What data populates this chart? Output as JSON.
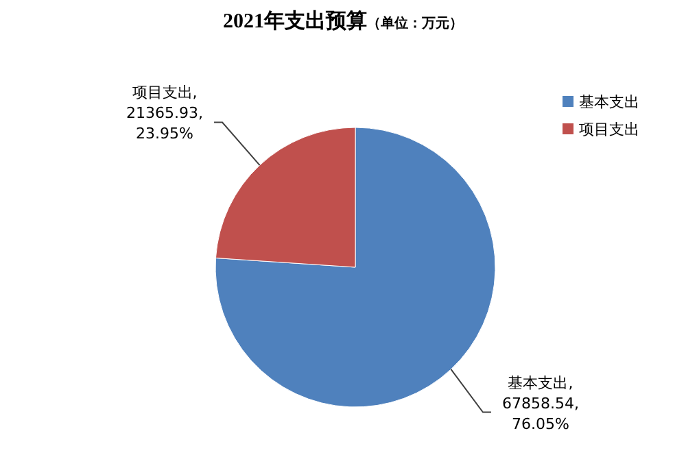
{
  "chart_data": {
    "type": "pie",
    "title": "2021年支出预算",
    "subtitle": "（单位：万元）",
    "categories": [
      "基本支出",
      "项目支出"
    ],
    "values": [
      67858.54,
      21365.93
    ],
    "colors": [
      "#4f81bd",
      "#c0504d"
    ],
    "value_labels": [
      "基本支出,\n67858.54,\n76.05%",
      "项目支出,\n21365.93,\n23.95%"
    ],
    "legend": "right"
  }
}
